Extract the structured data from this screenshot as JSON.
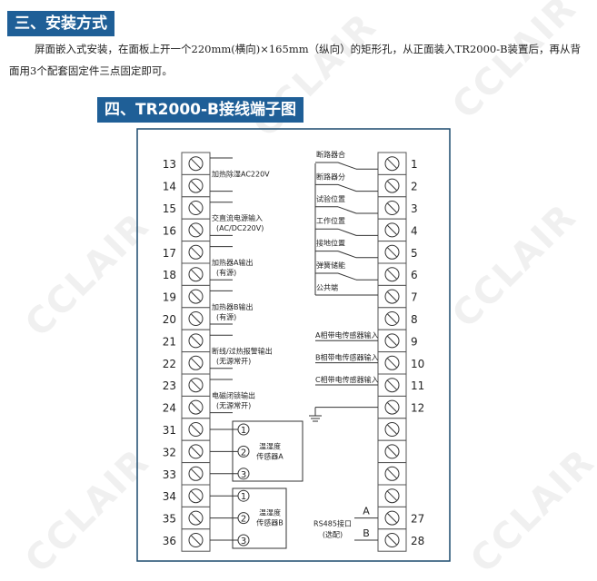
{
  "section3": {
    "title": "三、安装方式",
    "line1": "屏面嵌入式安装，在面板上开一个220mm(横向)×165mm（纵向）的矩形孔，从正面装入TR2000-B装置后，再从背",
    "line2": "面用3个配套固定件三点固定即可。"
  },
  "section4": {
    "title": "四、TR2000-B接线端子图"
  },
  "watermark": "CCLAIR",
  "diagram": {
    "left_terminals": [
      "13",
      "14",
      "15",
      "16",
      "17",
      "18",
      "19",
      "20",
      "21",
      "22",
      "23",
      "24",
      "31",
      "32",
      "33",
      "34",
      "35",
      "36"
    ],
    "right_terminals": [
      "1",
      "2",
      "3",
      "4",
      "5",
      "6",
      "7",
      "8",
      "9",
      "10",
      "11",
      "12",
      "",
      "",
      "",
      "",
      "27",
      "28"
    ],
    "left_labels": [
      [
        "加热除湿AC220V",
        ""
      ],
      [
        "交直流电源输入",
        "(AC/DC220V)"
      ],
      [
        "加热器A输出",
        "(有源)"
      ],
      [
        "加热器B输出",
        "(有源)"
      ],
      [
        "断线/过热报警输出",
        "(无源常开)"
      ],
      [
        "电磁闭锁输出",
        "(无源常开)"
      ]
    ],
    "right_labels": [
      "断路器合",
      "断路器分",
      "试验位置",
      "工作位置",
      "接地位置",
      "弹簧储能",
      "公共端"
    ],
    "sensor_inputs": [
      "A相带电传感器输入",
      "B相带电传感器输入",
      "C相带电传感器输入"
    ],
    "sensor_a": {
      "line1": "温湿度",
      "line2": "传感器A",
      "pins": [
        "1",
        "2",
        "3"
      ]
    },
    "sensor_b": {
      "line1": "温湿度",
      "line2": "传感器B",
      "pins": [
        "1",
        "2",
        "3"
      ]
    },
    "rs485": {
      "line1": "RS485接口",
      "line2": "(选配)",
      "a": "A",
      "b": "B"
    }
  }
}
